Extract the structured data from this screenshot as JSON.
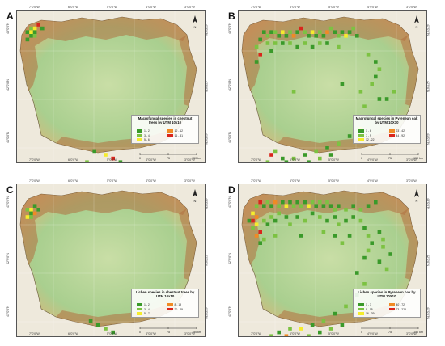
{
  "colors": {
    "c1": "#3a9a2a",
    "c2": "#7cc242",
    "c3": "#f5ec2c",
    "c4": "#f08a24",
    "c5": "#d9261c",
    "plain": "#a9cf8f",
    "mountain": "#b07040"
  },
  "axis_ticks": {
    "top": [
      "7°0'0\"W",
      "6°0'0\"W",
      "5°0'0\"W",
      "4°0'0\"W",
      "3°0'0\"W"
    ],
    "bottom": [
      "7°0'0\"W",
      "6°0'0\"W",
      "5°0'0\"W",
      "4°0'0\"W",
      "3°0'0\"W"
    ],
    "left": [
      "43°0'0\"N",
      "42°0'0\"N",
      "41°0'0\"N"
    ],
    "right": [
      "43°0'0\"N",
      "42°0'0\"N",
      "41°0'0\"N"
    ]
  },
  "scale": {
    "zero": "0",
    "mid": "75",
    "end": "150 km"
  },
  "north_label": "N",
  "panels": [
    {
      "letter": "A",
      "legend_title": "Macrofungal species in chestnut trees by UTM 10x10",
      "legend_items": [
        "1 - 2",
        "3 - 4",
        "5 - 6",
        "10 - 12",
        "16 - 31"
      ],
      "cells": [
        {
          "gx": 2,
          "gy": 3,
          "c": "c2"
        },
        {
          "gx": 3,
          "gy": 3,
          "c": "c3"
        },
        {
          "gx": 4,
          "gy": 2,
          "c": "c5"
        },
        {
          "gx": 5,
          "gy": 3,
          "c": "c1"
        },
        {
          "gx": 1,
          "gy": 4,
          "c": "c1"
        },
        {
          "gx": 2,
          "gy": 4,
          "c": "c3"
        },
        {
          "gx": 3,
          "gy": 4,
          "c": "c1"
        },
        {
          "gx": 2,
          "gy": 5,
          "c": "c1"
        },
        {
          "gx": 1,
          "gy": 6,
          "c": "c1"
        },
        {
          "gx": 3,
          "gy": 5,
          "c": "c2"
        },
        {
          "gx": 19,
          "gy": 36,
          "c": "c1"
        },
        {
          "gx": 22,
          "gy": 37,
          "c": "c3"
        },
        {
          "gx": 24,
          "gy": 38,
          "c": "c5"
        },
        {
          "gx": 26,
          "gy": 39,
          "c": "c1"
        },
        {
          "gx": 28,
          "gy": 40,
          "c": "c2"
        },
        {
          "gx": 30,
          "gy": 41,
          "c": "c1"
        },
        {
          "gx": 17,
          "gy": 39,
          "c": "c2"
        }
      ]
    },
    {
      "letter": "B",
      "legend_title": "Macrofungal species in Pyrenean oak by UTM 10X10",
      "legend_items": [
        "1 - 6",
        "7 - 9",
        "12 - 22",
        "23 - 42",
        "44 - 92"
      ],
      "cells": [
        {
          "gx": 5,
          "gy": 4,
          "c": "c1"
        },
        {
          "gx": 6,
          "gy": 5,
          "c": "c2"
        },
        {
          "gx": 7,
          "gy": 4,
          "c": "c1"
        },
        {
          "gx": 8,
          "gy": 4,
          "c": "c2"
        },
        {
          "gx": 9,
          "gy": 5,
          "c": "c1"
        },
        {
          "gx": 10,
          "gy": 4,
          "c": "c3"
        },
        {
          "gx": 11,
          "gy": 5,
          "c": "c1"
        },
        {
          "gx": 12,
          "gy": 4,
          "c": "c2"
        },
        {
          "gx": 13,
          "gy": 5,
          "c": "c4"
        },
        {
          "gx": 14,
          "gy": 4,
          "c": "c1"
        },
        {
          "gx": 15,
          "gy": 3,
          "c": "c5"
        },
        {
          "gx": 16,
          "gy": 4,
          "c": "c2"
        },
        {
          "gx": 17,
          "gy": 5,
          "c": "c1"
        },
        {
          "gx": 18,
          "gy": 4,
          "c": "c3"
        },
        {
          "gx": 19,
          "gy": 5,
          "c": "c1"
        },
        {
          "gx": 20,
          "gy": 4,
          "c": "c2"
        },
        {
          "gx": 21,
          "gy": 5,
          "c": "c1"
        },
        {
          "gx": 22,
          "gy": 4,
          "c": "c4"
        },
        {
          "gx": 23,
          "gy": 3,
          "c": "c2"
        },
        {
          "gx": 24,
          "gy": 4,
          "c": "c1"
        },
        {
          "gx": 25,
          "gy": 5,
          "c": "c2"
        },
        {
          "gx": 26,
          "gy": 4,
          "c": "c1"
        },
        {
          "gx": 27,
          "gy": 5,
          "c": "c3"
        },
        {
          "gx": 28,
          "gy": 4,
          "c": "c1"
        },
        {
          "gx": 29,
          "gy": 3,
          "c": "c2"
        },
        {
          "gx": 30,
          "gy": 5,
          "c": "c1"
        },
        {
          "gx": 4,
          "gy": 6,
          "c": "c1"
        },
        {
          "gx": 3,
          "gy": 8,
          "c": "c2"
        },
        {
          "gx": 4,
          "gy": 10,
          "c": "c5"
        },
        {
          "gx": 3,
          "gy": 12,
          "c": "c1"
        },
        {
          "gx": 6,
          "gy": 7,
          "c": "c2"
        },
        {
          "gx": 7,
          "gy": 9,
          "c": "c1"
        },
        {
          "gx": 8,
          "gy": 7,
          "c": "c2"
        },
        {
          "gx": 10,
          "gy": 7,
          "c": "c1"
        },
        {
          "gx": 12,
          "gy": 7,
          "c": "c2"
        },
        {
          "gx": 14,
          "gy": 8,
          "c": "c1"
        },
        {
          "gx": 16,
          "gy": 7,
          "c": "c2"
        },
        {
          "gx": 18,
          "gy": 8,
          "c": "c1"
        },
        {
          "gx": 20,
          "gy": 7,
          "c": "c2"
        },
        {
          "gx": 22,
          "gy": 7,
          "c": "c1"
        },
        {
          "gx": 25,
          "gy": 8,
          "c": "c2"
        },
        {
          "gx": 33,
          "gy": 10,
          "c": "c2"
        },
        {
          "gx": 35,
          "gy": 12,
          "c": "c1"
        },
        {
          "gx": 36,
          "gy": 14,
          "c": "c2"
        },
        {
          "gx": 35,
          "gy": 16,
          "c": "c1"
        },
        {
          "gx": 34,
          "gy": 18,
          "c": "c2"
        },
        {
          "gx": 31,
          "gy": 20,
          "c": "c2"
        },
        {
          "gx": 26,
          "gy": 18,
          "c": "c1"
        },
        {
          "gx": 13,
          "gy": 20,
          "c": "c2"
        },
        {
          "gx": 32,
          "gy": 24,
          "c": "c2"
        },
        {
          "gx": 33,
          "gy": 27,
          "c": "c1"
        },
        {
          "gx": 31,
          "gy": 30,
          "c": "c3"
        },
        {
          "gx": 28,
          "gy": 32,
          "c": "c1"
        },
        {
          "gx": 25,
          "gy": 34,
          "c": "c2"
        },
        {
          "gx": 22,
          "gy": 35,
          "c": "c1"
        },
        {
          "gx": 19,
          "gy": 36,
          "c": "c2"
        },
        {
          "gx": 16,
          "gy": 37,
          "c": "c1"
        },
        {
          "gx": 13,
          "gy": 38,
          "c": "c2"
        },
        {
          "gx": 10,
          "gy": 38,
          "c": "c1"
        },
        {
          "gx": 7,
          "gy": 37,
          "c": "c5"
        },
        {
          "gx": 8,
          "gy": 36,
          "c": "c2"
        },
        {
          "gx": 11,
          "gy": 39,
          "c": "c1"
        },
        {
          "gx": 14,
          "gy": 40,
          "c": "c2"
        },
        {
          "gx": 17,
          "gy": 39,
          "c": "c1"
        },
        {
          "gx": 20,
          "gy": 38,
          "c": "c2"
        },
        {
          "gx": 23,
          "gy": 37,
          "c": "c1"
        },
        {
          "gx": 9,
          "gy": 40,
          "c": "c1"
        },
        {
          "gx": 6,
          "gy": 39,
          "c": "c2"
        },
        {
          "gx": 38,
          "gy": 22,
          "c": "c1"
        },
        {
          "gx": 40,
          "gy": 20,
          "c": "c2"
        },
        {
          "gx": 36,
          "gy": 22,
          "c": "c1"
        }
      ]
    },
    {
      "letter": "C",
      "legend_title": "Lichen species in chestnut trees by UTM 10x10",
      "legend_items": [
        "1 - 2",
        "3 - 4",
        "5 - 7",
        "8 - 19",
        "20 - 29"
      ],
      "cells": [
        {
          "gx": 1,
          "gy": 5,
          "c": "c2"
        },
        {
          "gx": 2,
          "gy": 5,
          "c": "c3"
        },
        {
          "gx": 3,
          "gy": 4,
          "c": "c1"
        },
        {
          "gx": 2,
          "gy": 6,
          "c": "c1"
        },
        {
          "gx": 3,
          "gy": 6,
          "c": "c4"
        },
        {
          "gx": 1,
          "gy": 7,
          "c": "c3"
        },
        {
          "gx": 2,
          "gy": 7,
          "c": "c2"
        },
        {
          "gx": 4,
          "gy": 5,
          "c": "c1"
        },
        {
          "gx": 18,
          "gy": 35,
          "c": "c1"
        },
        {
          "gx": 20,
          "gy": 36,
          "c": "c1"
        },
        {
          "gx": 22,
          "gy": 37,
          "c": "c2"
        },
        {
          "gx": 24,
          "gy": 38,
          "c": "c1"
        },
        {
          "gx": 28,
          "gy": 40,
          "c": "c1"
        },
        {
          "gx": 30,
          "gy": 41,
          "c": "c2"
        }
      ]
    },
    {
      "letter": "D",
      "legend_title": "Lichen species in Pyrenean oak by UTM 10X10",
      "legend_items": [
        "1 - 7",
        "8 - 15",
        "16 - 39",
        "40 - 72",
        "73 - 223"
      ],
      "cells": [
        {
          "gx": 3,
          "gy": 4,
          "c": "c2"
        },
        {
          "gx": 4,
          "gy": 3,
          "c": "c5"
        },
        {
          "gx": 5,
          "gy": 4,
          "c": "c1"
        },
        {
          "gx": 6,
          "gy": 3,
          "c": "c2"
        },
        {
          "gx": 7,
          "gy": 4,
          "c": "c1"
        },
        {
          "gx": 8,
          "gy": 3,
          "c": "c4"
        },
        {
          "gx": 9,
          "gy": 4,
          "c": "c2"
        },
        {
          "gx": 10,
          "gy": 3,
          "c": "c1"
        },
        {
          "gx": 11,
          "gy": 4,
          "c": "c3"
        },
        {
          "gx": 12,
          "gy": 3,
          "c": "c1"
        },
        {
          "gx": 13,
          "gy": 4,
          "c": "c2"
        },
        {
          "gx": 14,
          "gy": 3,
          "c": "c1"
        },
        {
          "gx": 15,
          "gy": 4,
          "c": "c2"
        },
        {
          "gx": 16,
          "gy": 3,
          "c": "c1"
        },
        {
          "gx": 17,
          "gy": 4,
          "c": "c3"
        },
        {
          "gx": 18,
          "gy": 3,
          "c": "c2"
        },
        {
          "gx": 19,
          "gy": 4,
          "c": "c1"
        },
        {
          "gx": 20,
          "gy": 3,
          "c": "c2"
        },
        {
          "gx": 21,
          "gy": 4,
          "c": "c1"
        },
        {
          "gx": 22,
          "gy": 3,
          "c": "c2"
        },
        {
          "gx": 23,
          "gy": 4,
          "c": "c1"
        },
        {
          "gx": 24,
          "gy": 5,
          "c": "c2"
        },
        {
          "gx": 25,
          "gy": 4,
          "c": "c1"
        },
        {
          "gx": 27,
          "gy": 5,
          "c": "c2"
        },
        {
          "gx": 29,
          "gy": 4,
          "c": "c1"
        },
        {
          "gx": 31,
          "gy": 5,
          "c": "c2"
        },
        {
          "gx": 33,
          "gy": 4,
          "c": "c1"
        },
        {
          "gx": 35,
          "gy": 3,
          "c": "c1"
        },
        {
          "gx": 2,
          "gy": 6,
          "c": "c3"
        },
        {
          "gx": 3,
          "gy": 7,
          "c": "c4"
        },
        {
          "gx": 2,
          "gy": 8,
          "c": "c5"
        },
        {
          "gx": 3,
          "gy": 9,
          "c": "c3"
        },
        {
          "gx": 2,
          "gy": 10,
          "c": "c2"
        },
        {
          "gx": 4,
          "gy": 11,
          "c": "c5"
        },
        {
          "gx": 3,
          "gy": 12,
          "c": "c4"
        },
        {
          "gx": 5,
          "gy": 13,
          "c": "c2"
        },
        {
          "gx": 4,
          "gy": 14,
          "c": "c1"
        },
        {
          "gx": 1,
          "gy": 8,
          "c": "c1"
        },
        {
          "gx": 5,
          "gy": 8,
          "c": "c2"
        },
        {
          "gx": 6,
          "gy": 9,
          "c": "c1"
        },
        {
          "gx": 7,
          "gy": 7,
          "c": "c2"
        },
        {
          "gx": 8,
          "gy": 8,
          "c": "c1"
        },
        {
          "gx": 9,
          "gy": 6,
          "c": "c2"
        },
        {
          "gx": 11,
          "gy": 7,
          "c": "c1"
        },
        {
          "gx": 12,
          "gy": 9,
          "c": "c2"
        },
        {
          "gx": 14,
          "gy": 7,
          "c": "c1"
        },
        {
          "gx": 16,
          "gy": 8,
          "c": "c2"
        },
        {
          "gx": 18,
          "gy": 6,
          "c": "c1"
        },
        {
          "gx": 20,
          "gy": 7,
          "c": "c2"
        },
        {
          "gx": 22,
          "gy": 8,
          "c": "c1"
        },
        {
          "gx": 24,
          "gy": 7,
          "c": "c1"
        },
        {
          "gx": 25,
          "gy": 9,
          "c": "c2"
        },
        {
          "gx": 27,
          "gy": 8,
          "c": "c1"
        },
        {
          "gx": 29,
          "gy": 7,
          "c": "c1"
        },
        {
          "gx": 31,
          "gy": 8,
          "c": "c2"
        },
        {
          "gx": 32,
          "gy": 10,
          "c": "c1"
        },
        {
          "gx": 33,
          "gy": 12,
          "c": "c2"
        },
        {
          "gx": 34,
          "gy": 14,
          "c": "c1"
        },
        {
          "gx": 33,
          "gy": 16,
          "c": "c2"
        },
        {
          "gx": 32,
          "gy": 18,
          "c": "c1"
        },
        {
          "gx": 36,
          "gy": 11,
          "c": "c1"
        },
        {
          "gx": 37,
          "gy": 13,
          "c": "c2"
        },
        {
          "gx": 28,
          "gy": 12,
          "c": "c1"
        },
        {
          "gx": 26,
          "gy": 14,
          "c": "c2"
        },
        {
          "gx": 24,
          "gy": 12,
          "c": "c1"
        },
        {
          "gx": 21,
          "gy": 11,
          "c": "c2"
        },
        {
          "gx": 15,
          "gy": 12,
          "c": "c1"
        },
        {
          "gx": 8,
          "gy": 12,
          "c": "c2"
        },
        {
          "gx": 30,
          "gy": 22,
          "c": "c1"
        },
        {
          "gx": 32,
          "gy": 25,
          "c": "c2"
        },
        {
          "gx": 30,
          "gy": 28,
          "c": "c1"
        },
        {
          "gx": 27,
          "gy": 31,
          "c": "c2"
        },
        {
          "gx": 24,
          "gy": 33,
          "c": "c1"
        },
        {
          "gx": 21,
          "gy": 35,
          "c": "c2"
        },
        {
          "gx": 18,
          "gy": 36,
          "c": "c1"
        },
        {
          "gx": 15,
          "gy": 37,
          "c": "c3"
        },
        {
          "gx": 12,
          "gy": 37,
          "c": "c2"
        },
        {
          "gx": 9,
          "gy": 38,
          "c": "c1"
        },
        {
          "gx": 11,
          "gy": 39,
          "c": "c4"
        },
        {
          "gx": 14,
          "gy": 40,
          "c": "c1"
        },
        {
          "gx": 17,
          "gy": 39,
          "c": "c2"
        },
        {
          "gx": 20,
          "gy": 38,
          "c": "c1"
        },
        {
          "gx": 23,
          "gy": 37,
          "c": "c2"
        },
        {
          "gx": 26,
          "gy": 36,
          "c": "c1"
        },
        {
          "gx": 7,
          "gy": 39,
          "c": "c2"
        },
        {
          "gx": 10,
          "gy": 41,
          "c": "c1"
        },
        {
          "gx": 13,
          "gy": 42,
          "c": "c2"
        },
        {
          "gx": 16,
          "gy": 41,
          "c": "c1"
        },
        {
          "gx": 19,
          "gy": 40,
          "c": "c2"
        },
        {
          "gx": 36,
          "gy": 19,
          "c": "c1"
        },
        {
          "gx": 38,
          "gy": 21,
          "c": "c2"
        },
        {
          "gx": 39,
          "gy": 17,
          "c": "c1"
        },
        {
          "gx": 37,
          "gy": 15,
          "c": "c2"
        }
      ]
    }
  ]
}
